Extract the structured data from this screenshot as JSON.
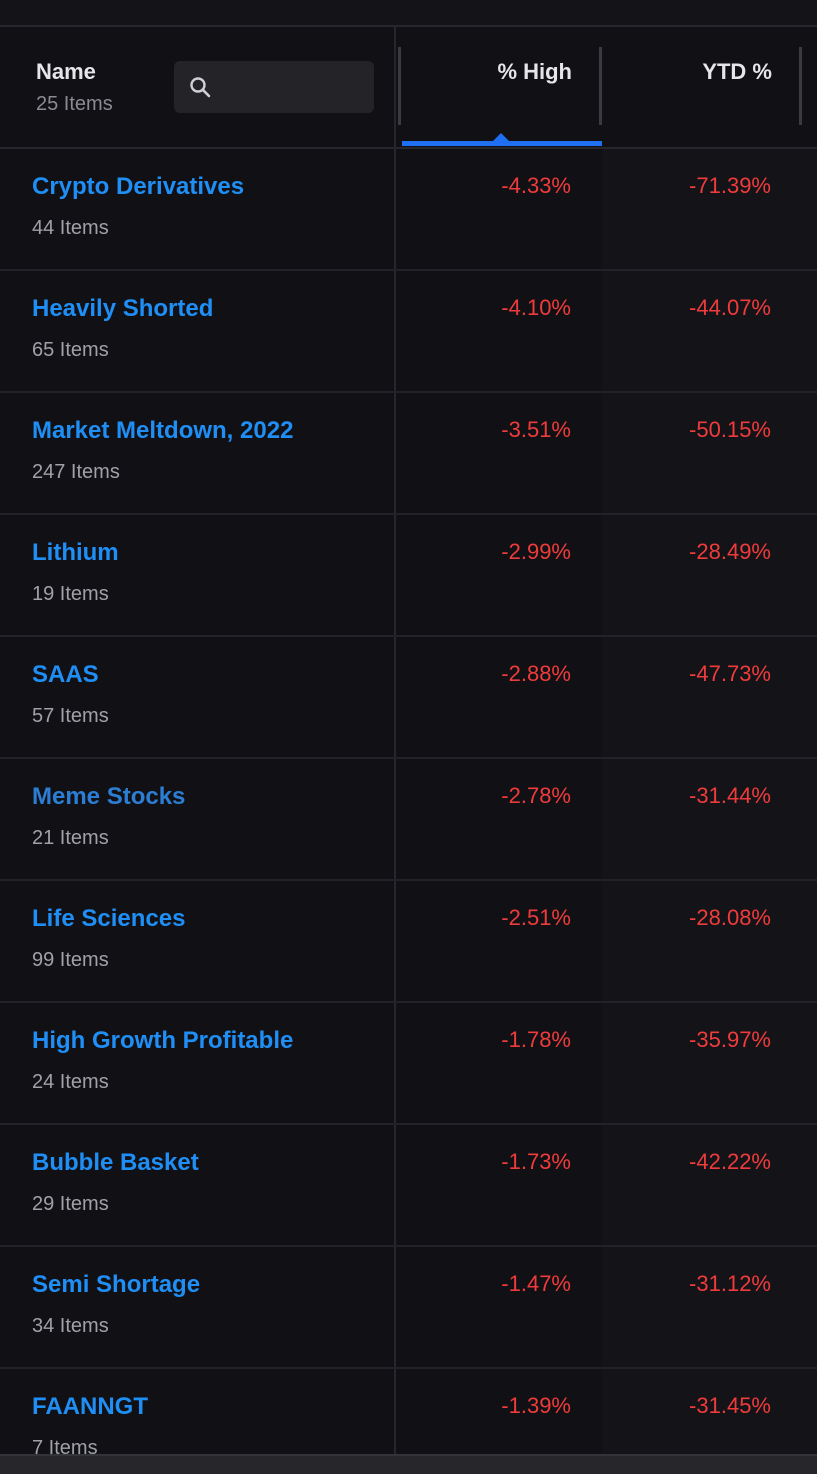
{
  "header": {
    "name_label": "Name",
    "item_count": "25 Items",
    "search_placeholder": "",
    "columns": [
      {
        "label": "% High",
        "sorted": true,
        "sort_direction": "ascending"
      },
      {
        "label": "YTD %"
      }
    ]
  },
  "colors": {
    "background": "#111115",
    "link": "#1f8ef5",
    "negative": "#ef3b3b",
    "sort_indicator": "#1e6ff1"
  },
  "rows": [
    {
      "name": "Crypto Derivatives",
      "count": "44 Items",
      "pct_high": "-4.33%",
      "ytd": "-71.39%"
    },
    {
      "name": "Heavily Shorted",
      "count": "65 Items",
      "pct_high": "-4.10%",
      "ytd": "-44.07%"
    },
    {
      "name": "Market Meltdown, 2022",
      "count": "247 Items",
      "pct_high": "-3.51%",
      "ytd": "-50.15%"
    },
    {
      "name": "Lithium",
      "count": "19 Items",
      "pct_high": "-2.99%",
      "ytd": "-28.49%"
    },
    {
      "name": "SAAS",
      "count": "57 Items",
      "pct_high": "-2.88%",
      "ytd": "-47.73%"
    },
    {
      "name": "Meme Stocks",
      "count": "21 Items",
      "pct_high": "-2.78%",
      "ytd": "-31.44%"
    },
    {
      "name": "Life Sciences",
      "count": "99 Items",
      "pct_high": "-2.51%",
      "ytd": "-28.08%"
    },
    {
      "name": "High Growth Profitable",
      "count": "24 Items",
      "pct_high": "-1.78%",
      "ytd": "-35.97%"
    },
    {
      "name": "Bubble Basket",
      "count": "29 Items",
      "pct_high": "-1.73%",
      "ytd": "-42.22%"
    },
    {
      "name": "Semi Shortage",
      "count": "34 Items",
      "pct_high": "-1.47%",
      "ytd": "-31.12%"
    },
    {
      "name": "FAANNGT",
      "count": "7 Items",
      "pct_high": "-1.39%",
      "ytd": "-31.45%"
    }
  ]
}
